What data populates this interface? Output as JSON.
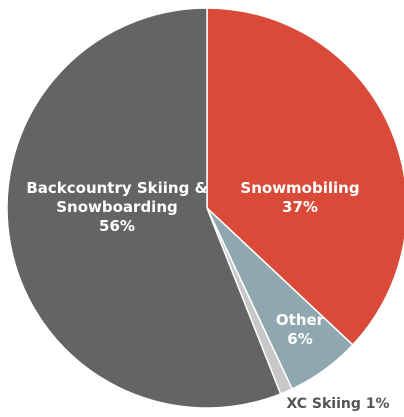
{
  "chart_data": {
    "type": "pie",
    "categories": [
      "Snowmobiling",
      "Other",
      "XC Skiing",
      "Backcountry Skiing & Snowboarding"
    ],
    "values": [
      37,
      6,
      1,
      56
    ],
    "unit": "%",
    "colors": [
      "#d94b38",
      "#8fa8b0",
      "#c8c8c8",
      "#636466"
    ],
    "start_angle_deg": 0,
    "direction": "clockwise",
    "labels": [
      {
        "lines": [
          "Snowmobiling",
          "37%"
        ],
        "placement": "inside"
      },
      {
        "lines": [
          "Other",
          "6%"
        ],
        "placement": "inside"
      },
      {
        "lines": [
          "XC Skiing 1%"
        ],
        "placement": "outside"
      },
      {
        "lines": [
          "Backcountry Skiing &",
          "Snowboarding",
          "56%"
        ],
        "placement": "inside"
      }
    ]
  }
}
